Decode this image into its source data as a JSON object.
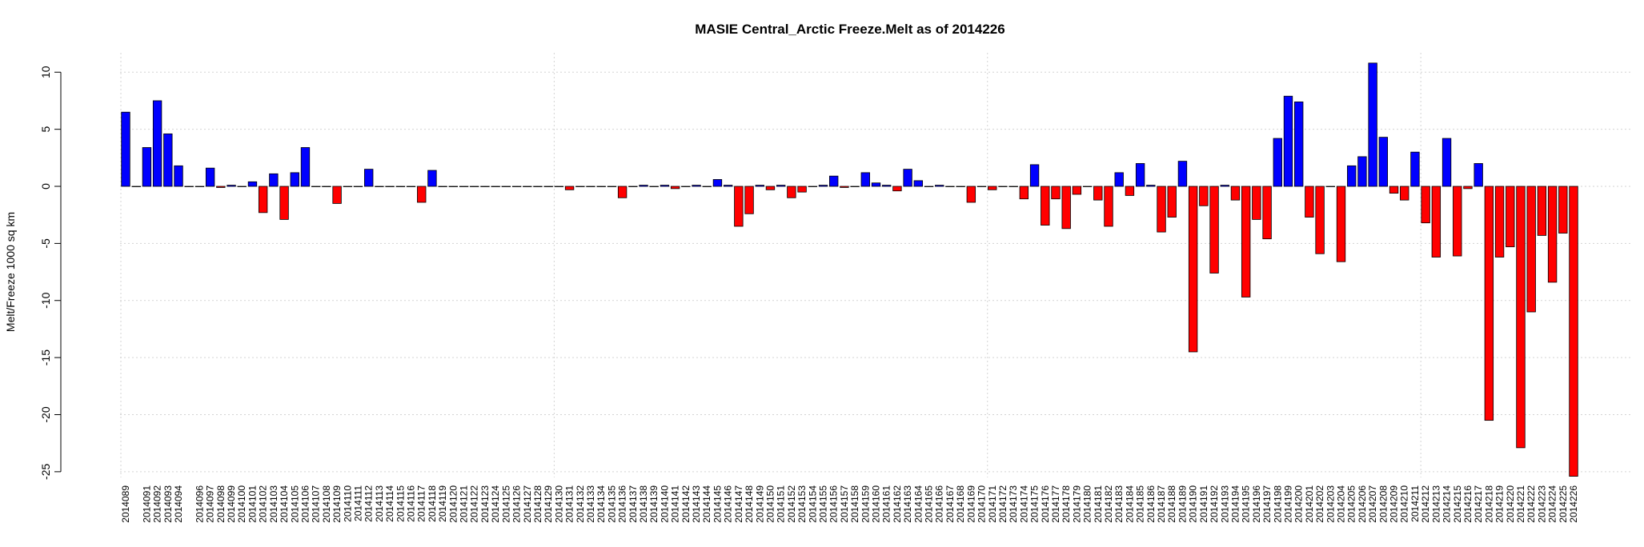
{
  "chart_data": {
    "type": "bar",
    "title": "MASIE Central_Arctic Freeze.Melt as of 2014226",
    "y_label": "Melt/Freeze 1000 sq km",
    "categories": [
      "2014089",
      null,
      "2014091",
      "2014092",
      "2014093",
      "2014094",
      null,
      "2014096",
      "2014097",
      "2014098",
      "2014099",
      "2014100",
      "2014101",
      "2014102",
      "2014103",
      "2014104",
      "2014105",
      "2014106",
      "2014107",
      "2014108",
      "2014109",
      "2014110",
      "2014111",
      "2014112",
      "2014113",
      "2014114",
      "2014115",
      "2014116",
      "2014117",
      "2014118",
      "2014119",
      "2014120",
      "2014121",
      "2014122",
      "2014123",
      "2014124",
      "2014125",
      "2014126",
      "2014127",
      "2014128",
      "2014129",
      "2014130",
      "2014131",
      "2014132",
      "2014133",
      "2014134",
      "2014135",
      "2014136",
      "2014137",
      "2014138",
      "2014139",
      "2014140",
      "2014141",
      "2014142",
      "2014143",
      "2014144",
      "2014145",
      "2014146",
      "2014147",
      "2014148",
      "2014149",
      "2014150",
      "2014151",
      "2014152",
      "2014153",
      "2014154",
      "2014155",
      "2014156",
      "2014157",
      "2014158",
      "2014159",
      "2014160",
      "2014161",
      "2014162",
      "2014163",
      "2014164",
      "2014165",
      "2014166",
      "2014167",
      "2014168",
      "2014169",
      "2014170",
      "2014171",
      "2014172",
      "2014173",
      "2014174",
      "2014175",
      "2014176",
      "2014177",
      "2014178",
      "2014179",
      "2014180",
      "2014181",
      "2014182",
      "2014183",
      "2014184",
      "2014185",
      "2014186",
      "2014187",
      "2014188",
      "2014189",
      "2014190",
      "2014191",
      "2014192",
      "2014193",
      "2014194",
      "2014195",
      "2014196",
      "2014197",
      "2014198",
      "2014199",
      "2014200",
      "2014201",
      "2014202",
      "2014203",
      "2014204",
      "2014205",
      "2014206",
      "2014207",
      "2014208",
      "2014209",
      "2014210",
      "2014211",
      "2014212",
      "2014213",
      "2014214",
      "2014215",
      "2014216",
      "2014217",
      "2014218",
      "2014219",
      "2014220",
      "2014221",
      "2014222",
      "2014223",
      "2014224",
      "2014225",
      "2014226"
    ],
    "values": [
      6.5,
      0,
      3.4,
      7.5,
      4.6,
      1.8,
      0,
      0,
      1.6,
      -0.1,
      0.1,
      0,
      0.4,
      -2.3,
      1.1,
      -2.9,
      1.2,
      3.4,
      0,
      0,
      -1.5,
      0,
      0,
      1.5,
      0,
      0,
      0,
      0,
      -1.4,
      1.4,
      0,
      0,
      0,
      0,
      0,
      0,
      0,
      0,
      0,
      0,
      0,
      0,
      -0.3,
      0,
      0,
      0,
      0,
      -1.0,
      0,
      0.1,
      0,
      0.1,
      -0.2,
      0,
      0.1,
      0,
      0.6,
      0.1,
      -3.5,
      -2.4,
      0.1,
      -0.3,
      0.1,
      -1.0,
      -0.5,
      0,
      0.1,
      0.9,
      -0.1,
      0,
      1.2,
      0.3,
      0.1,
      -0.4,
      1.5,
      0.5,
      0,
      0.1,
      0,
      0,
      -1.4,
      0,
      -0.3,
      0,
      0,
      -1.1,
      1.9,
      -3.4,
      -1.1,
      -3.7,
      -0.7,
      0,
      -1.2,
      -3.5,
      1.2,
      -0.8,
      2.0,
      0.1,
      -4.0,
      -2.7,
      2.2,
      -14.5,
      -1.7,
      -7.6,
      0.1,
      -1.2,
      -9.7,
      -2.9,
      -4.6,
      4.2,
      7.9,
      7.4,
      -2.7,
      -5.9,
      0,
      -6.6,
      1.8,
      2.6,
      10.8,
      4.3,
      -0.6,
      -1.2,
      3.0,
      -3.2,
      -6.2,
      4.2,
      -6.1,
      -0.2,
      2.0,
      -20.5,
      -6.2,
      -5.3,
      -22.9,
      -11.0,
      -4.3,
      -8.4,
      -4.1,
      -25.4
    ],
    "colors": {
      "positive": "#0000ff",
      "negative": "#ff0000"
    },
    "ylim": [
      -25.5,
      11
    ],
    "yticks": [
      -25,
      -20,
      -15,
      -10,
      -5,
      0,
      5,
      10
    ],
    "grid": true
  }
}
